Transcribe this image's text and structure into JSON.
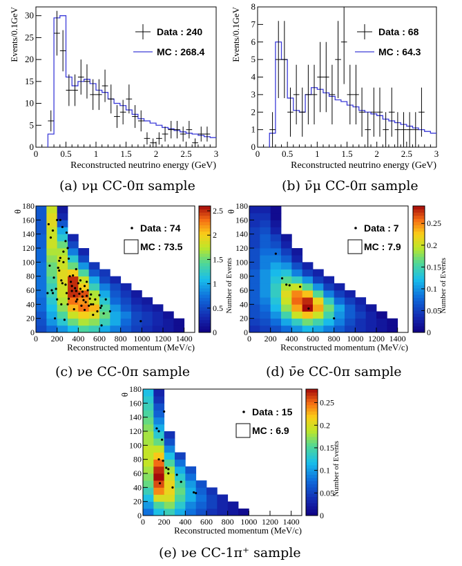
{
  "captions": {
    "a": "(a) νμ CC-0π sample",
    "b": "(b) ν̄μ CC-0π sample",
    "c": "(c) νe CC-0π sample",
    "d": "(d) ν̄e CC-0π sample",
    "e": "(e) νe CC-1π⁺ sample"
  },
  "chart_data": [
    {
      "id": "a",
      "type": "line",
      "xlabel": "Reconstructed neutrino energy (GeV)",
      "ylabel": "Events/0.1GeV",
      "xlim": [
        0,
        3
      ],
      "ylim": [
        0,
        32
      ],
      "xticks": [
        "0",
        "0.5",
        "1",
        "1.5",
        "2",
        "2.5",
        "3"
      ],
      "yticks": [
        "0",
        "5",
        "10",
        "15",
        "20",
        "25",
        "30"
      ],
      "legend": {
        "data": "Data : 240",
        "mc": "MC : 268.4",
        "placement": "top-right"
      },
      "mc_color": "#3a3ad8",
      "mc_edges": [
        0.2,
        0.3,
        0.4,
        0.5,
        0.6,
        0.7,
        0.8,
        0.9,
        1.0,
        1.1,
        1.2,
        1.3,
        1.4,
        1.5,
        1.6,
        1.7,
        1.8,
        1.9,
        2.0,
        2.1,
        2.2,
        2.3,
        2.4,
        2.5,
        2.6,
        2.7,
        2.8,
        2.9,
        3.0
      ],
      "mc_values": [
        3,
        29.5,
        30,
        16,
        14,
        15,
        15.5,
        14.5,
        13,
        12.5,
        11,
        10,
        9.5,
        8.5,
        7.5,
        6.5,
        6,
        5.5,
        5,
        4.5,
        4.2,
        3.8,
        3.5,
        3.2,
        3,
        2.7,
        2.4,
        2.2
      ],
      "data_x": [
        0.25,
        0.35,
        0.45,
        0.55,
        0.65,
        0.75,
        0.85,
        0.95,
        1.05,
        1.15,
        1.25,
        1.35,
        1.45,
        1.55,
        1.65,
        1.75,
        1.85,
        1.95,
        2.05,
        2.15,
        2.25,
        2.35,
        2.45,
        2.55,
        2.65,
        2.75,
        2.85
      ],
      "data_y": [
        6,
        26,
        22,
        13,
        13,
        16,
        15,
        12,
        12,
        14,
        11,
        7,
        8,
        11,
        7,
        6,
        2,
        1,
        2,
        3,
        4,
        4,
        3,
        4,
        1,
        3,
        3
      ],
      "data_yerr": [
        2.4,
        5.1,
        4.7,
        3.6,
        3.6,
        4,
        3.9,
        3.5,
        3.5,
        3.7,
        3.3,
        2.6,
        2.8,
        3.3,
        2.6,
        2.4,
        1.4,
        1,
        1.4,
        1.7,
        2,
        2,
        1.7,
        2,
        1,
        1.7,
        1.7
      ]
    },
    {
      "id": "b",
      "type": "line",
      "xlabel": "Reconstructed neutrino energy (GeV)",
      "ylabel": "Events/0.1GeV",
      "xlim": [
        0,
        3
      ],
      "ylim": [
        0,
        8
      ],
      "xticks": [
        "0",
        "0.5",
        "1",
        "1.5",
        "2",
        "2.5",
        "3"
      ],
      "yticks": [
        "0",
        "1",
        "2",
        "3",
        "4",
        "5",
        "6",
        "7",
        "8"
      ],
      "legend": {
        "data": "Data : 68",
        "mc": "MC : 64.3",
        "placement": "top-right"
      },
      "mc_color": "#3a3ad8",
      "mc_edges": [
        0.2,
        0.3,
        0.4,
        0.5,
        0.6,
        0.7,
        0.8,
        0.9,
        1.0,
        1.1,
        1.2,
        1.3,
        1.4,
        1.5,
        1.6,
        1.7,
        1.8,
        1.9,
        2.0,
        2.1,
        2.2,
        2.3,
        2.4,
        2.5,
        2.6,
        2.7,
        2.8,
        2.9,
        3.0
      ],
      "mc_values": [
        0.8,
        6,
        5,
        2.8,
        2.1,
        2,
        3,
        3.4,
        3.3,
        3.1,
        2.9,
        2.7,
        2.6,
        2.4,
        2.3,
        2.1,
        2,
        1.9,
        1.8,
        1.6,
        1.5,
        1.4,
        1.3,
        1.2,
        1.1,
        1,
        0.9,
        0.8
      ],
      "data_x": [
        0.25,
        0.35,
        0.45,
        0.55,
        0.65,
        0.75,
        0.85,
        0.95,
        1.05,
        1.15,
        1.25,
        1.35,
        1.45,
        1.55,
        1.65,
        1.75,
        1.85,
        1.95,
        2.05,
        2.15,
        2.25,
        2.35,
        2.45,
        2.55,
        2.65,
        2.75
      ],
      "data_y": [
        1,
        5,
        5,
        2,
        3,
        2,
        3,
        3,
        4,
        4,
        3,
        5,
        6,
        3,
        3,
        2,
        1,
        2,
        2,
        1,
        2,
        1,
        1,
        1,
        1,
        2
      ],
      "data_yerr": [
        1,
        2.2,
        2.2,
        1.4,
        1.7,
        1.4,
        1.7,
        1.7,
        2,
        2,
        1.7,
        2.2,
        2.4,
        1.7,
        1.7,
        1.4,
        1,
        1.4,
        1.4,
        1,
        1.4,
        1,
        1,
        1,
        1,
        1.4
      ]
    },
    {
      "id": "c",
      "type": "heatmap",
      "xlabel": "Reconstructed momentum (MeV/c)",
      "ylabel": "θ",
      "zlabel": "Number of Events",
      "xlim": [
        0,
        1500
      ],
      "ylim": [
        0,
        180
      ],
      "zlim": [
        0,
        2.6
      ],
      "xticks": [
        "0",
        "200",
        "400",
        "600",
        "800",
        "1000",
        "1200",
        "1400"
      ],
      "yticks": [
        "0",
        "20",
        "40",
        "60",
        "80",
        "100",
        "120",
        "140",
        "160",
        "180"
      ],
      "zticks": [
        "0",
        "0.5",
        "1",
        "1.5",
        "2",
        "2.5"
      ],
      "legend": {
        "data": "Data : 74",
        "mc": "MC : 73.5",
        "placement": "top-right"
      },
      "bin_w": 100,
      "bin_h": 10,
      "z_rows": [
        [
          0.5,
          0.7,
          0.9,
          1.1,
          1.4,
          1.3,
          1.0,
          0.8,
          0.6,
          0.45,
          0.35,
          0.25,
          0.2,
          0.1
        ],
        [
          0.55,
          0.9,
          1.2,
          1.5,
          1.7,
          1.6,
          1.3,
          1.0,
          0.7,
          0.5,
          0.4,
          0.3,
          0.2,
          0.1
        ],
        [
          0.6,
          1.0,
          1.4,
          1.8,
          2.0,
          1.9,
          1.5,
          1.0,
          0.8,
          0.5,
          0.4,
          0.3,
          0.15
        ],
        [
          0.7,
          1.1,
          1.6,
          2.1,
          2.3,
          2.1,
          1.4,
          0.9,
          0.6,
          0.4,
          0.3,
          0.2
        ],
        [
          0.7,
          1.2,
          1.7,
          2.3,
          2.2,
          1.8,
          1.2,
          0.7,
          0.5,
          0.3,
          0.2
        ],
        [
          0.75,
          1.3,
          1.8,
          2.5,
          2.4,
          1.7,
          1.0,
          0.6,
          0.4,
          0.2
        ],
        [
          0.75,
          1.3,
          1.8,
          2.5,
          2.0,
          1.3,
          0.8,
          0.5,
          0.3
        ],
        [
          0.75,
          1.4,
          1.9,
          2.5,
          1.8,
          1.0,
          0.5,
          0.3
        ],
        [
          0.75,
          1.5,
          1.9,
          2.0,
          1.4,
          0.6,
          0.4
        ],
        [
          0.75,
          1.5,
          1.8,
          1.5,
          0.9,
          0.4
        ],
        [
          0.7,
          1.6,
          1.8,
          1.2,
          0.5
        ],
        [
          0.7,
          1.7,
          1.7,
          0.8,
          0.3
        ],
        [
          0.65,
          1.8,
          1.5,
          0.5
        ],
        [
          0.65,
          1.8,
          1.2,
          0.3
        ],
        [
          0.6,
          1.8,
          1.0
        ],
        [
          0.6,
          1.9,
          0.6
        ],
        [
          0.6,
          1.9,
          0.3
        ],
        [
          0.6,
          1.8,
          0.2
        ]
      ],
      "points": [
        [
          110,
          56
        ],
        [
          130,
          95
        ],
        [
          160,
          56
        ],
        [
          170,
          78
        ],
        [
          190,
          62
        ],
        [
          200,
          47
        ],
        [
          210,
          92
        ],
        [
          220,
          88
        ],
        [
          220,
          102
        ],
        [
          230,
          106
        ],
        [
          240,
          74
        ],
        [
          250,
          70
        ],
        [
          260,
          100
        ],
        [
          260,
          115
        ],
        [
          270,
          18
        ],
        [
          280,
          68
        ],
        [
          290,
          56
        ],
        [
          300,
          40
        ],
        [
          310,
          48
        ],
        [
          310,
          105
        ],
        [
          330,
          72
        ],
        [
          340,
          66
        ],
        [
          340,
          59
        ],
        [
          350,
          81
        ],
        [
          360,
          52
        ],
        [
          370,
          63
        ],
        [
          380,
          44
        ],
        [
          380,
          59
        ],
        [
          390,
          47
        ],
        [
          400,
          70
        ],
        [
          410,
          55
        ],
        [
          420,
          62
        ],
        [
          430,
          38
        ],
        [
          440,
          51
        ],
        [
          440,
          58
        ],
        [
          450,
          46
        ],
        [
          460,
          66
        ],
        [
          470,
          43
        ],
        [
          480,
          52
        ],
        [
          490,
          60
        ],
        [
          500,
          38
        ],
        [
          510,
          48
        ],
        [
          520,
          54
        ],
        [
          540,
          40
        ],
        [
          560,
          47
        ],
        [
          580,
          30
        ],
        [
          600,
          53
        ],
        [
          610,
          35
        ],
        [
          620,
          38
        ],
        [
          640,
          27
        ],
        [
          660,
          47
        ],
        [
          120,
          154
        ],
        [
          140,
          135
        ],
        [
          150,
          60
        ],
        [
          160,
          145
        ],
        [
          180,
          20
        ],
        [
          200,
          160
        ],
        [
          230,
          160
        ],
        [
          240,
          40
        ],
        [
          250,
          150
        ],
        [
          280,
          130
        ],
        [
          290,
          142
        ],
        [
          300,
          120
        ],
        [
          320,
          80
        ],
        [
          360,
          33
        ],
        [
          380,
          90
        ],
        [
          420,
          74
        ],
        [
          460,
          32
        ],
        [
          480,
          72
        ],
        [
          520,
          40
        ],
        [
          540,
          25
        ],
        [
          620,
          10
        ],
        [
          700,
          30
        ],
        [
          990,
          16
        ]
      ]
    },
    {
      "id": "d",
      "type": "heatmap",
      "xlabel": "Reconstructed momentum (MeV/c)",
      "ylabel": "θ",
      "zlabel": "Number of Events",
      "xlim": [
        0,
        1500
      ],
      "ylim": [
        0,
        180
      ],
      "zlim": [
        0,
        0.29
      ],
      "xticks": [
        "0",
        "200",
        "400",
        "600",
        "800",
        "1000",
        "1200",
        "1400"
      ],
      "yticks": [
        "0",
        "20",
        "40",
        "60",
        "80",
        "100",
        "120",
        "140",
        "160",
        "180"
      ],
      "zticks": [
        "0",
        "0.05",
        "0.1",
        "0.15",
        "0.2",
        "0.25"
      ],
      "legend": {
        "data": "Data : 7",
        "mc": "MC : 7.9",
        "placement": "top-right"
      },
      "bin_w": 100,
      "bin_h": 10,
      "z_rows": [
        [
          0.04,
          0.05,
          0.06,
          0.08,
          0.1,
          0.12,
          0.11,
          0.09,
          0.07,
          0.05,
          0.04,
          0.03,
          0.02,
          0.01
        ],
        [
          0.05,
          0.06,
          0.08,
          0.11,
          0.14,
          0.17,
          0.15,
          0.12,
          0.09,
          0.06,
          0.04,
          0.03,
          0.02,
          0.01
        ],
        [
          0.06,
          0.07,
          0.1,
          0.15,
          0.2,
          0.23,
          0.2,
          0.15,
          0.1,
          0.07,
          0.05,
          0.03,
          0.01
        ],
        [
          0.06,
          0.08,
          0.12,
          0.18,
          0.24,
          0.29,
          0.24,
          0.17,
          0.11,
          0.07,
          0.04,
          0.02
        ],
        [
          0.07,
          0.09,
          0.13,
          0.2,
          0.26,
          0.28,
          0.22,
          0.14,
          0.08,
          0.05,
          0.03
        ],
        [
          0.07,
          0.1,
          0.14,
          0.21,
          0.25,
          0.23,
          0.16,
          0.09,
          0.05,
          0.03
        ],
        [
          0.07,
          0.1,
          0.14,
          0.19,
          0.2,
          0.16,
          0.1,
          0.05,
          0.03
        ],
        [
          0.07,
          0.1,
          0.13,
          0.16,
          0.14,
          0.1,
          0.05,
          0.03
        ],
        [
          0.07,
          0.1,
          0.12,
          0.13,
          0.09,
          0.05,
          0.03
        ],
        [
          0.06,
          0.09,
          0.11,
          0.1,
          0.06,
          0.03
        ],
        [
          0.06,
          0.09,
          0.09,
          0.07,
          0.03
        ],
        [
          0.06,
          0.08,
          0.08,
          0.05,
          0.02
        ],
        [
          0.05,
          0.07,
          0.06,
          0.03
        ],
        [
          0.05,
          0.07,
          0.05,
          0.02
        ],
        [
          0.05,
          0.06,
          0.03
        ],
        [
          0.04,
          0.05,
          0.02
        ],
        [
          0.04,
          0.04,
          0.01
        ],
        [
          0.03,
          0.03,
          0.01
        ]
      ],
      "points": [
        [
          250,
          112
        ],
        [
          310,
          77
        ],
        [
          350,
          68
        ],
        [
          380,
          67
        ],
        [
          480,
          65
        ],
        [
          560,
          34
        ],
        [
          800,
          20
        ]
      ]
    },
    {
      "id": "e",
      "type": "heatmap",
      "xlabel": "Reconstructed momentum (MeV/c)",
      "ylabel": "θ",
      "zlabel": "Number of Events",
      "xlim": [
        0,
        1500
      ],
      "ylim": [
        0,
        180
      ],
      "zlim": [
        0,
        0.28
      ],
      "xticks": [
        "0",
        "200",
        "400",
        "600",
        "800",
        "1000",
        "1200",
        "1400"
      ],
      "yticks": [
        "0",
        "20",
        "40",
        "60",
        "80",
        "100",
        "120",
        "140",
        "160",
        "180"
      ],
      "zticks": [
        "0",
        "0.05",
        "0.1",
        "0.15",
        "0.2",
        "0.25"
      ],
      "legend": {
        "data": "Data : 15",
        "mc": "MC : 6.9",
        "placement": "top-right"
      },
      "bin_w": 100,
      "bin_h": 10,
      "z_rows": [
        [
          0.08,
          0.12,
          0.14,
          0.11,
          0.08,
          0.06,
          0.04,
          0.03,
          0.02,
          0.01
        ],
        [
          0.1,
          0.15,
          0.17,
          0.13,
          0.09,
          0.07,
          0.05,
          0.03,
          0.02
        ],
        [
          0.12,
          0.2,
          0.2,
          0.15,
          0.11,
          0.08,
          0.05,
          0.03
        ],
        [
          0.14,
          0.24,
          0.21,
          0.16,
          0.11,
          0.07,
          0.04
        ],
        [
          0.16,
          0.26,
          0.21,
          0.15,
          0.1,
          0.06
        ],
        [
          0.17,
          0.28,
          0.2,
          0.13,
          0.08
        ],
        [
          0.18,
          0.27,
          0.18,
          0.11,
          0.06
        ],
        [
          0.19,
          0.25,
          0.15,
          0.08
        ],
        [
          0.19,
          0.22,
          0.12,
          0.05
        ],
        [
          0.19,
          0.19,
          0.09
        ],
        [
          0.18,
          0.16,
          0.06
        ],
        [
          0.18,
          0.13,
          0.04
        ],
        [
          0.17,
          0.11
        ],
        [
          0.16,
          0.09
        ],
        [
          0.15,
          0.07
        ],
        [
          0.14,
          0.06
        ],
        [
          0.13,
          0.04
        ],
        [
          0.12,
          0.03
        ]
      ],
      "points": [
        [
          130,
          124
        ],
        [
          150,
          120
        ],
        [
          150,
          80
        ],
        [
          160,
          46
        ],
        [
          180,
          108
        ],
        [
          190,
          78
        ],
        [
          200,
          148
        ],
        [
          220,
          68
        ],
        [
          240,
          60
        ],
        [
          240,
          66
        ],
        [
          280,
          40
        ],
        [
          320,
          58
        ],
        [
          360,
          48
        ],
        [
          480,
          33
        ],
        [
          500,
          32
        ]
      ]
    }
  ]
}
